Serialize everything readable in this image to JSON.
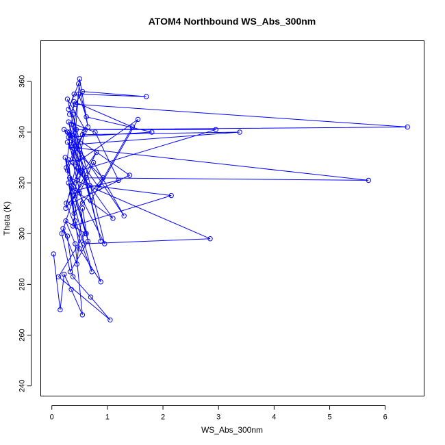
{
  "chart_data": {
    "type": "line",
    "title": "ATOM4 Northbound WS_Abs_300nm",
    "xlabel": "WS_Abs_300nm",
    "ylabel": "Theta (K)",
    "xlim": [
      -0.2,
      6.7
    ],
    "ylim": [
      236,
      376
    ],
    "x_ticks": [
      0,
      1,
      2,
      3,
      4,
      5,
      6
    ],
    "y_ticks": [
      240,
      260,
      280,
      300,
      320,
      340,
      360
    ],
    "grid": false,
    "legend": "none",
    "series_color": "#0000FF",
    "marker": "open-circle",
    "series": [
      {
        "x": [
          0.03,
          0.15,
          0.22,
          0.35,
          0.55,
          0.42,
          0.25,
          0.6,
          0.12,
          1.05,
          0.7,
          0.38,
          0.28,
          0.2,
          0.45,
          0.55,
          0.65,
          0.33,
          0.18,
          0.4,
          0.88,
          0.5,
          0.3,
          0.72,
          0.26,
          0.48,
          1.1,
          0.36,
          0.62,
          0.24,
          0.42,
          0.58,
          2.85,
          0.32,
          0.5,
          0.75,
          1.3,
          0.28,
          0.45,
          0.8,
          0.35,
          1.4,
          0.22,
          0.55,
          0.92,
          0.4,
          0.3,
          0.68,
          2.15,
          0.38,
          0.52,
          0.28,
          0.85,
          1.55,
          0.45,
          0.25,
          0.62,
          5.7,
          0.35,
          0.48,
          0.3,
          0.78,
          1.2,
          0.42,
          0.58,
          0.28,
          0.95,
          0.38,
          0.5,
          0.32,
          0.7,
          1.45,
          0.4,
          0.26,
          0.55,
          3.38,
          0.35,
          0.48,
          0.62,
          1.8,
          0.3,
          0.44,
          2.95,
          0.52,
          0.36,
          0.88,
          0.28,
          0.6,
          6.4,
          0.42,
          0.32,
          0.55,
          1.7,
          0.4,
          0.3,
          0.48,
          0.65,
          0.5,
          0.38,
          0.55
        ],
        "y": [
          292,
          270,
          284,
          278,
          268,
          296,
          305,
          300,
          283,
          266,
          275,
          283,
          299,
          302,
          288,
          310,
          297,
          285,
          300,
          315,
          281,
          294,
          320,
          285,
          312,
          325,
          306,
          318,
          300,
          330,
          305,
          296,
          298,
          322,
          316,
          328,
          307,
          340,
          321,
          332,
          312,
          323,
          341,
          330,
          322,
          308,
          329,
          319,
          315,
          303,
          324,
          336,
          318,
          345,
          328,
          310,
          322,
          321,
          334,
          326,
          344,
          340,
          321,
          317,
          340,
          325,
          296,
          347,
          333,
          340,
          313,
          342,
          352,
          326,
          339,
          340,
          335,
          355,
          346,
          340,
          338,
          341,
          341,
          325,
          343,
          297,
          353,
          341,
          342,
          351,
          347,
          356,
          354,
          355,
          349,
          359,
          342,
          361,
          328,
          312
        ]
      }
    ]
  }
}
